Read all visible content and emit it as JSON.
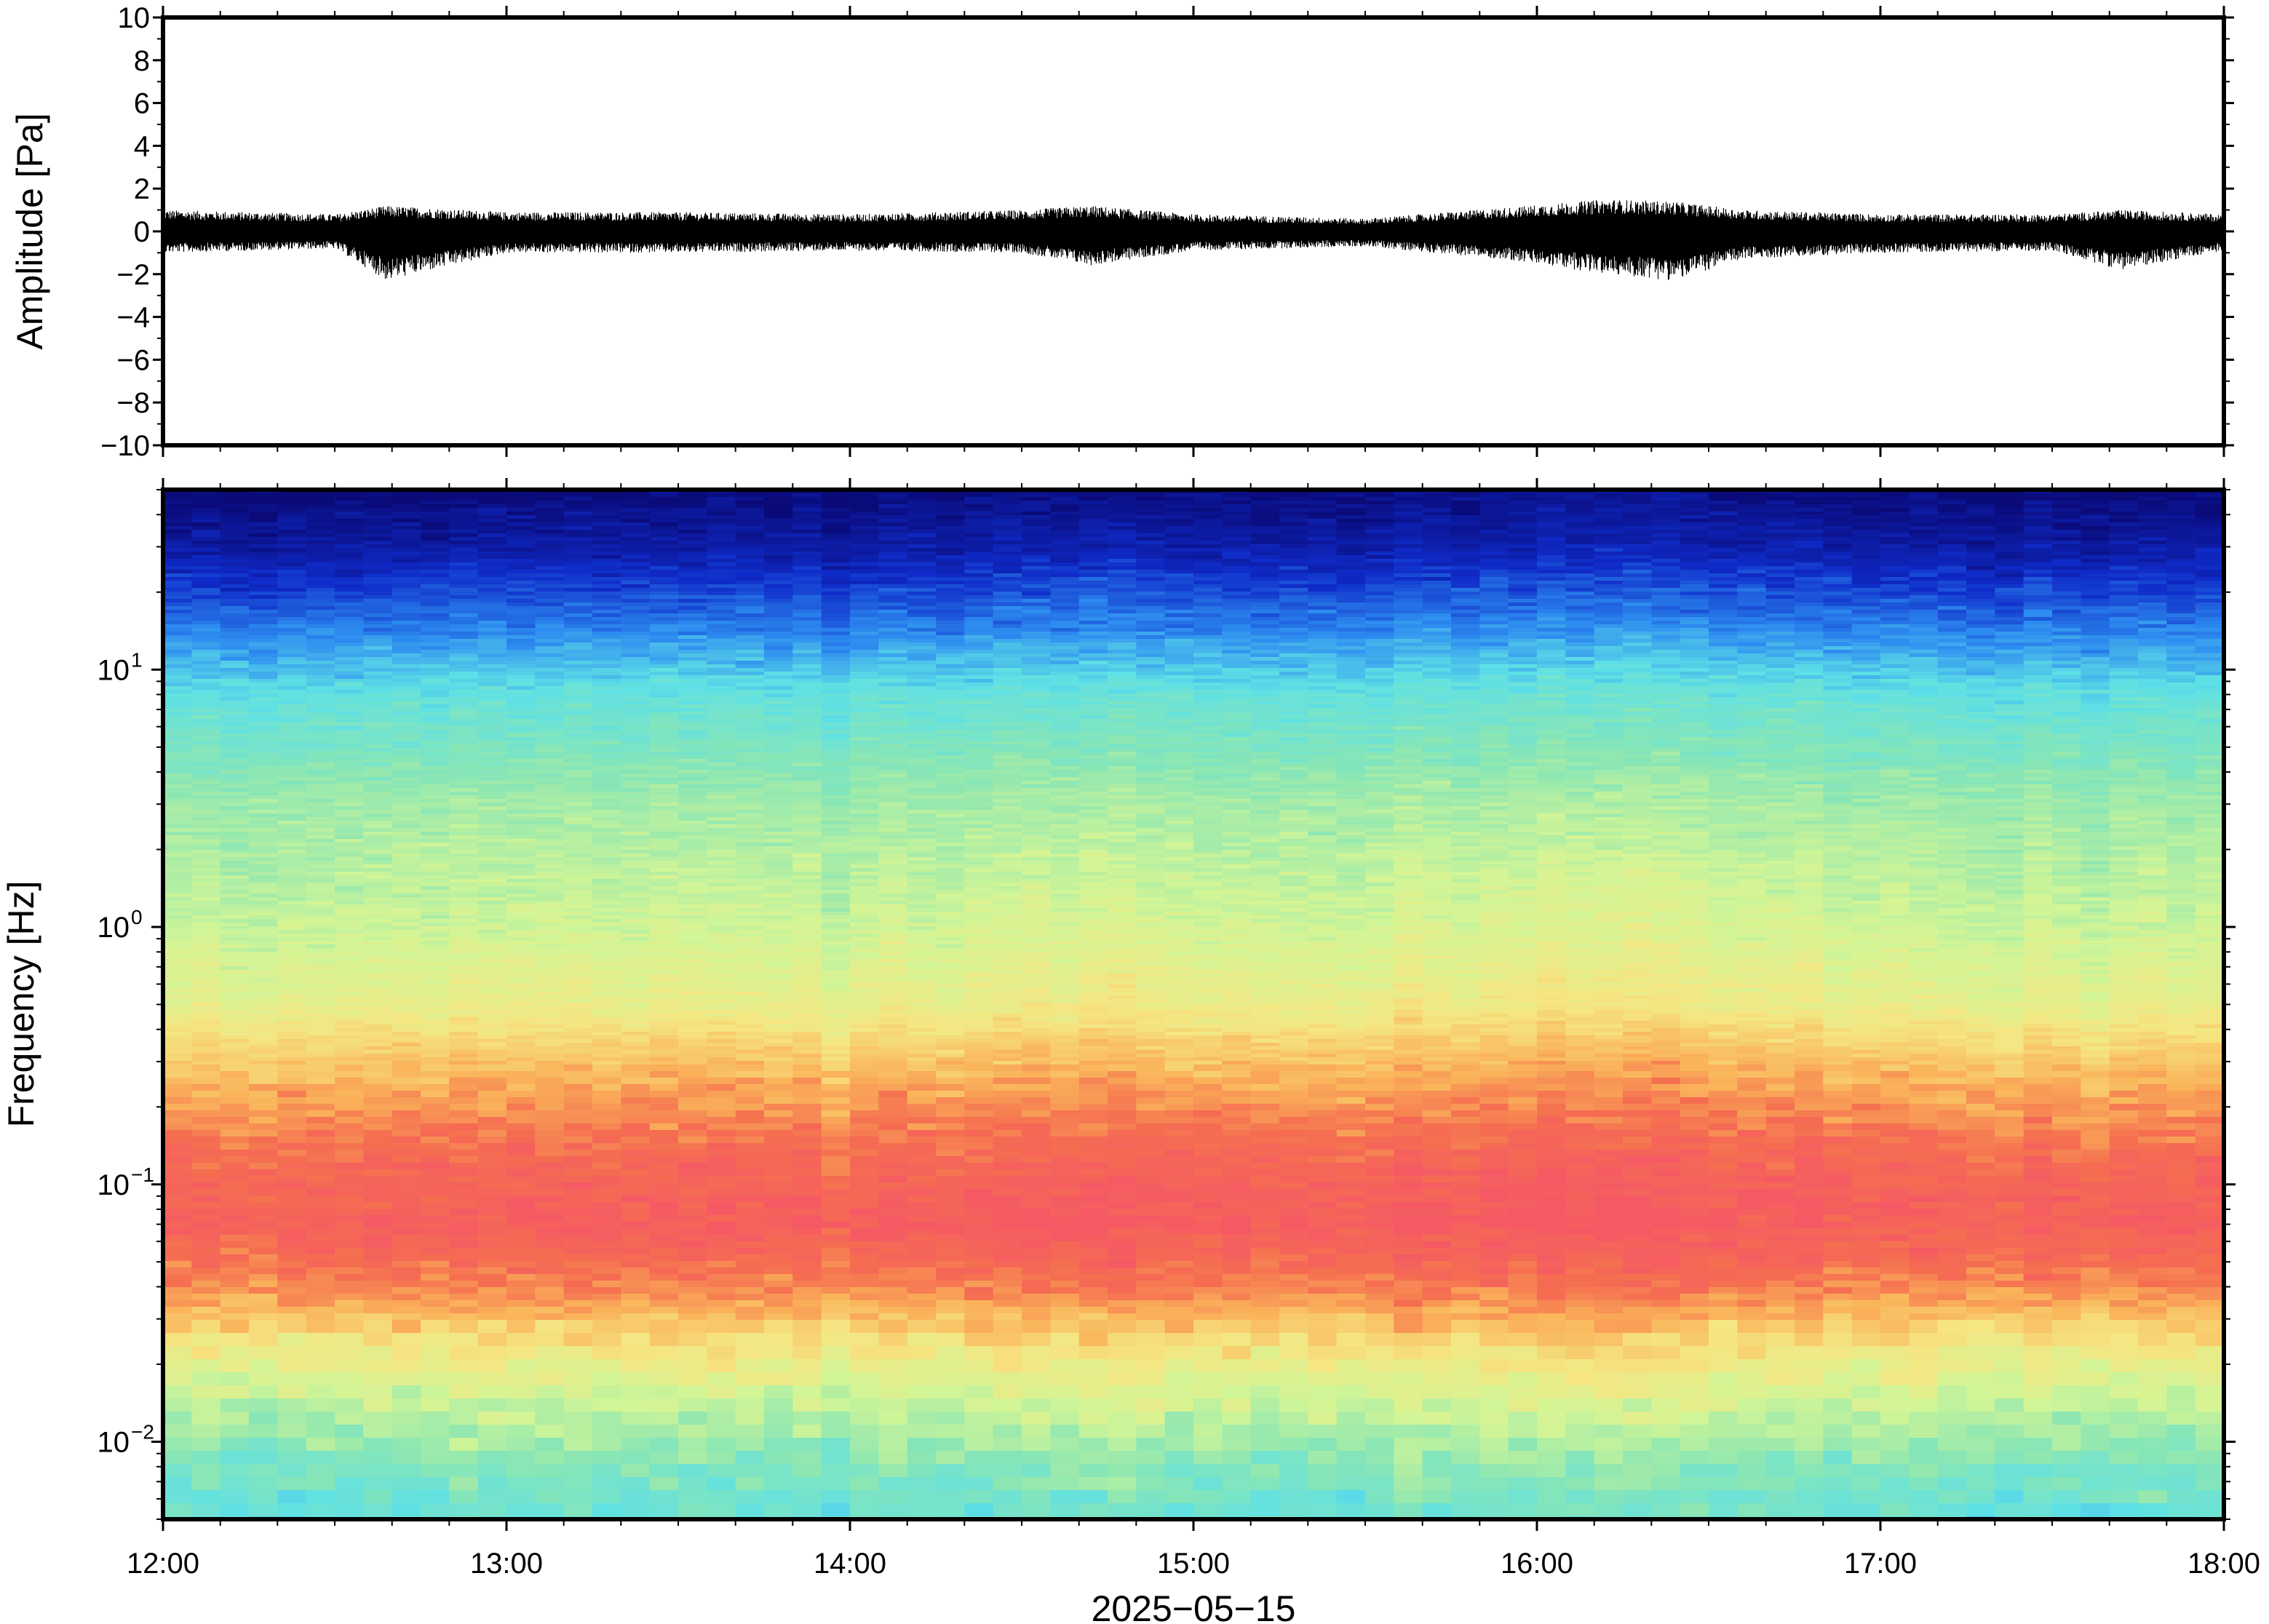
{
  "chart_data": [
    {
      "type": "line",
      "panel": "waveform",
      "ylabel": "Amplitude [Pa]",
      "xlabel": "",
      "title": "",
      "ylim": [
        -10,
        10
      ],
      "xlim": [
        "12:00",
        "18:00"
      ],
      "y_ticks": [
        -10,
        -8,
        -6,
        -4,
        -2,
        0,
        2,
        4,
        6,
        8,
        10
      ],
      "y_tick_labels": [
        "−10",
        "−8",
        "−6",
        "−4",
        "−2",
        "0",
        "2",
        "4",
        "6",
        "8",
        "10"
      ],
      "grid": false,
      "series": [
        {
          "envelope": {
            "time_hours": [
              12.0,
              12.5,
              12.65,
              13.0,
              13.5,
              14.0,
              14.5,
              14.7,
              15.0,
              15.5,
              15.9,
              16.2,
              16.4,
              16.6,
              17.0,
              17.5,
              17.7,
              18.0
            ],
            "upper": [
              1.0,
              0.8,
              1.2,
              0.9,
              0.9,
              0.8,
              1.0,
              1.2,
              0.8,
              0.6,
              1.1,
              1.5,
              1.4,
              1.0,
              0.8,
              0.8,
              1.0,
              0.8
            ],
            "lower": [
              -1.0,
              -0.8,
              -2.3,
              -1.0,
              -1.0,
              -0.9,
              -1.0,
              -1.6,
              -0.9,
              -0.7,
              -1.3,
              -2.0,
              -2.3,
              -1.3,
              -1.0,
              -0.9,
              -1.8,
              -0.9
            ]
          },
          "color": "#000000"
        }
      ]
    },
    {
      "type": "heatmap",
      "panel": "spectrogram",
      "ylabel": "Frequency [Hz]",
      "xlabel": "2025−05−15",
      "title": "",
      "y_scale": "log",
      "ylim": [
        0.005,
        50
      ],
      "xlim": [
        "12:00",
        "18:00"
      ],
      "x_ticks": [
        "12:00",
        "13:00",
        "14:00",
        "15:00",
        "16:00",
        "17:00",
        "18:00"
      ],
      "y_ticks": [
        {
          "value": 0.01,
          "base": "10",
          "exp": "−2"
        },
        {
          "value": 0.1,
          "base": "10",
          "exp": "−1"
        },
        {
          "value": 1,
          "base": "10",
          "exp": "0"
        },
        {
          "value": 10,
          "base": "10",
          "exp": "1"
        }
      ],
      "colormap": "rainbow",
      "colormap_stops": [
        "#0a0a78",
        "#0f2bc8",
        "#2d8cf0",
        "#5ee0e6",
        "#8ae6b4",
        "#d2f596",
        "#f5e682",
        "#fab45a",
        "#f56e50",
        "#f55a64"
      ],
      "band_profile": {
        "frequency_hz": [
          50,
          30,
          15,
          8,
          3,
          1,
          0.5,
          0.25,
          0.12,
          0.07,
          0.04,
          0.025,
          0.015,
          0.008,
          0.005
        ],
        "level_0_to_1": [
          0.0,
          0.06,
          0.2,
          0.35,
          0.48,
          0.55,
          0.62,
          0.78,
          0.92,
          0.97,
          0.85,
          0.68,
          0.55,
          0.42,
          0.36
        ]
      },
      "grid": false
    }
  ]
}
